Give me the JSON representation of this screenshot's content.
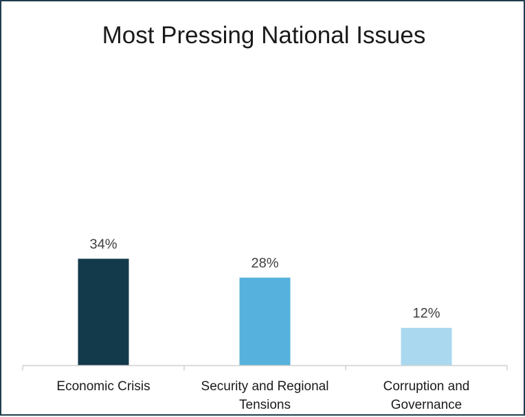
{
  "chart_data": {
    "type": "bar",
    "title": "Most Pressing National Issues",
    "categories": [
      "Economic Crisis",
      "Security and Regional Tensions",
      "Corruption and Governance"
    ],
    "category_lines": [
      [
        "Economic Crisis"
      ],
      [
        "Security and Regional",
        "Tensions"
      ],
      [
        "Corruption and",
        "Governance"
      ]
    ],
    "values": [
      34,
      28,
      12
    ],
    "value_labels": [
      "34%",
      "28%",
      "12%"
    ],
    "bar_colors": [
      "#133a4b",
      "#56b2dd",
      "#a9d8ef"
    ],
    "xlabel": "",
    "ylabel": "",
    "ylim": [
      0,
      100
    ],
    "grid": false,
    "legend": "none"
  }
}
